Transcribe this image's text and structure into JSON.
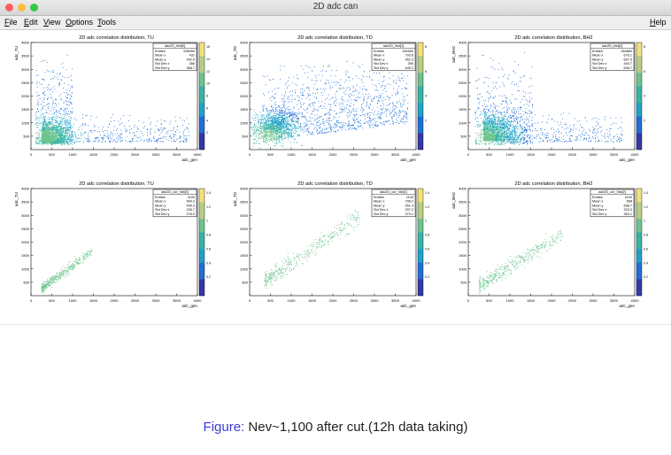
{
  "window": {
    "title": "2D adc can",
    "traffic_light_colors": [
      "#fc605c",
      "#fdbc40",
      "#34c84a"
    ]
  },
  "menu": {
    "items": [
      {
        "label": "File",
        "u": "F",
        "rest": "ile"
      },
      {
        "label": "Edit",
        "u": "E",
        "rest": "dit"
      },
      {
        "label": "View",
        "u": "V",
        "rest": "iew"
      },
      {
        "label": "Options",
        "u": "O",
        "rest": "ptions"
      },
      {
        "label": "Tools",
        "u": "T",
        "rest": "ools"
      }
    ],
    "help": {
      "label": "Help",
      "u": "H",
      "rest": "elp"
    }
  },
  "colors": {
    "palette": [
      "#3537a6",
      "#1f6fd6",
      "#1fa1c8",
      "#36b4a4",
      "#6cc48e",
      "#b6cf82",
      "#f3e27a"
    ]
  },
  "panels": [
    {
      "title": "2D adc correlation distribution, TU",
      "ylabel": "adc_TU",
      "xlabel": "adc_gen",
      "stats": {
        "name": "adc2D_hist[0]",
        "rows": [
          [
            "Entries",
            "528050"
          ],
          [
            "Mean x",
            "431"
          ],
          [
            "Mean y",
            "492.5"
          ],
          [
            "Std Dev x",
            "286"
          ],
          [
            "Std Dev y",
            "368.7"
          ]
        ]
      },
      "palette_ticks": [
        "16",
        "14",
        "12",
        "10",
        "8",
        "6",
        "4",
        "2"
      ],
      "xticks": [
        "0",
        "500",
        "1000",
        "1500",
        "2000",
        "2500",
        "3000",
        "3500",
        "4000"
      ],
      "yticks": [
        "4000",
        "3500",
        "3000",
        "2500",
        "2000",
        "1500",
        "1000",
        "500"
      ],
      "pattern": "full_tu"
    },
    {
      "title": "2D adc correlation distribution, TD",
      "ylabel": "adc_TD",
      "xlabel": "adc_gen",
      "stats": {
        "name": "adc2D_hist[1]",
        "rows": [
          [
            "Entries",
            "324650"
          ],
          [
            "Mean x",
            "793.6"
          ],
          [
            "Mean y",
            "952.3"
          ],
          [
            "Std Dev x",
            "390"
          ],
          [
            "Std Dev y",
            "445.2"
          ]
        ]
      },
      "palette_ticks": [
        "8",
        "6",
        "4",
        "2"
      ],
      "xticks": [
        "0",
        "500",
        "1000",
        "1500",
        "2000",
        "2500",
        "3000",
        "3500",
        "4000"
      ],
      "yticks": [
        "4000",
        "3500",
        "3000",
        "2500",
        "2000",
        "1500",
        "1000",
        "500"
      ],
      "pattern": "full_td"
    },
    {
      "title": "2D adc correlation distribution, BH2",
      "ylabel": "adc_BH2",
      "xlabel": "adc_gen",
      "stats": {
        "name": "adc2D_hist[2]",
        "rows": [
          [
            "Entries",
            "318860"
          ],
          [
            "Mean x",
            "676.1"
          ],
          [
            "Mean y",
            "697.5"
          ],
          [
            "Std Dev x",
            "444.7"
          ],
          [
            "Std Dev y",
            "506.7"
          ]
        ]
      },
      "palette_ticks": [
        "8",
        "6",
        "4",
        "2"
      ],
      "xticks": [
        "0",
        "500",
        "1000",
        "1500",
        "2000",
        "2500",
        "3000",
        "3500",
        "4000"
      ],
      "yticks": [
        "4000",
        "3500",
        "3000",
        "2500",
        "2000",
        "1500",
        "1000",
        "500"
      ],
      "pattern": "full_bh2"
    },
    {
      "title": "2D adc correlation distribution, TU",
      "ylabel": "adc_TU",
      "xlabel": "adc_gen",
      "stats": {
        "name": "adc2D_cor_hist[0]",
        "rows": [
          [
            "Entries",
            "1100"
          ],
          [
            "Mean x",
            "464.2"
          ],
          [
            "Mean y",
            "549.3"
          ],
          [
            "Std Dev x",
            "206.7"
          ],
          [
            "Std Dev y",
            "276.2"
          ]
        ]
      },
      "palette_ticks": [
        "1.4",
        "1.2",
        "1",
        "0.8",
        "0.6",
        "0.4",
        "0.2"
      ],
      "xticks": [
        "0",
        "500",
        "1000",
        "1500",
        "2000",
        "2500",
        "3000",
        "3500",
        "4000"
      ],
      "yticks": [
        "4000",
        "3500",
        "3000",
        "2500",
        "2000",
        "1500",
        "1000",
        "500"
      ],
      "pattern": "cut_tu"
    },
    {
      "title": "2D adc correlation distribution, TD",
      "ylabel": "adc_TD",
      "xlabel": "adc_gen",
      "stats": {
        "name": "adc2D_cor_hist[1]",
        "rows": [
          [
            "Entries",
            "1100"
          ],
          [
            "Mean x",
            "798.2"
          ],
          [
            "Mean y",
            "951.4"
          ],
          [
            "Std Dev x",
            "337.2"
          ],
          [
            "Std Dev y",
            "379.1"
          ]
        ]
      },
      "palette_ticks": [
        "1.4",
        "1.2",
        "1",
        "0.8",
        "0.6",
        "0.4",
        "0.2"
      ],
      "xticks": [
        "0",
        "500",
        "1000",
        "1500",
        "2000",
        "2500",
        "3000",
        "3500",
        "4000"
      ],
      "yticks": [
        "4000",
        "3500",
        "3000",
        "2500",
        "2000",
        "1500",
        "1000",
        "500"
      ],
      "pattern": "cut_td"
    },
    {
      "title": "2D adc correlation distribution, BH2",
      "ylabel": "adc_BH2",
      "xlabel": "adc_gen",
      "stats": {
        "name": "adc2D_cor_hist[2]",
        "rows": [
          [
            "Entries",
            "1100"
          ],
          [
            "Mean x",
            "658"
          ],
          [
            "Mean y",
            "668.7"
          ],
          [
            "Std Dev x",
            "323.3"
          ],
          [
            "Std Dev y",
            "353.1"
          ]
        ]
      },
      "palette_ticks": [
        "1.4",
        "1.2",
        "1",
        "0.8",
        "0.6",
        "0.4",
        "0.2"
      ],
      "xticks": [
        "0",
        "500",
        "1000",
        "1500",
        "2000",
        "2500",
        "3000",
        "3500",
        "4000"
      ],
      "yticks": [
        "4000",
        "3500",
        "3000",
        "2500",
        "2000",
        "1500",
        "1000",
        "500"
      ],
      "pattern": "cut_bh2"
    }
  ],
  "caption": {
    "label": "Figure:",
    "text": "Nev~1,100 after cut.(12h data taking)"
  }
}
